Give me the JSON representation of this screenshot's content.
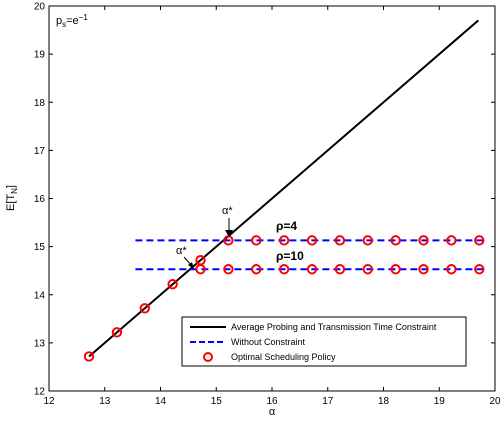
{
  "chart_data": {
    "type": "line",
    "xlabel": "α",
    "ylabel_main": "E[T",
    "ylabel_sub": "N",
    "ylabel_end": "]",
    "xlim": [
      12,
      20
    ],
    "ylim": [
      12,
      20
    ],
    "xticks": [
      12,
      13,
      14,
      15,
      16,
      17,
      18,
      19,
      20
    ],
    "yticks": [
      12,
      13,
      14,
      15,
      16,
      17,
      18,
      19,
      20
    ],
    "grid": false,
    "legend_placement": "bottom-right",
    "series": [
      {
        "name": "Average Probing and Transmission Time Constraint",
        "style": "solid",
        "color": "#000000",
        "x": [
          12.718,
          19.7
        ],
        "y": [
          12.718,
          19.7
        ]
      },
      {
        "name": "Without Constraint",
        "style": "dashed",
        "color": "#0000ff",
        "x": [
          13.55,
          19.8
        ],
        "y": [
          15.13,
          15.13
        ]
      },
      {
        "name": "",
        "style": "dashed",
        "color": "#0000ff",
        "x": [
          13.55,
          19.8
        ],
        "y": [
          14.53,
          14.53
        ]
      },
      {
        "name": "Optimal Scheduling Policy",
        "style": "marker-circle",
        "color": "#ff0000",
        "x": [
          12.718,
          13.218,
          13.718,
          14.218,
          14.718,
          15.218,
          15.718,
          16.218,
          16.718,
          17.218,
          17.718,
          18.218,
          18.718,
          19.218,
          19.718
        ],
        "y": [
          12.718,
          13.218,
          13.718,
          14.218,
          14.718,
          15.13,
          15.13,
          15.13,
          15.13,
          15.13,
          15.13,
          15.13,
          15.13,
          15.13,
          15.13
        ]
      },
      {
        "name": "",
        "style": "marker-circle",
        "color": "#ff0000",
        "x": [
          14.718,
          15.218,
          15.718,
          16.218,
          16.718,
          17.218,
          17.718,
          18.218,
          18.718,
          19.218,
          19.718
        ],
        "y": [
          14.53,
          14.53,
          14.53,
          14.53,
          14.53,
          14.53,
          14.53,
          14.53,
          14.53,
          14.53,
          14.53
        ]
      }
    ],
    "annotations": {
      "ps_main": "p",
      "ps_sub": "s",
      "ps_rest": "=e",
      "ps_sup": "−1",
      "alpha_star_1": "α*",
      "alpha_star_2": "α*",
      "rho4": "ρ=4",
      "rho10": "ρ=10"
    }
  }
}
